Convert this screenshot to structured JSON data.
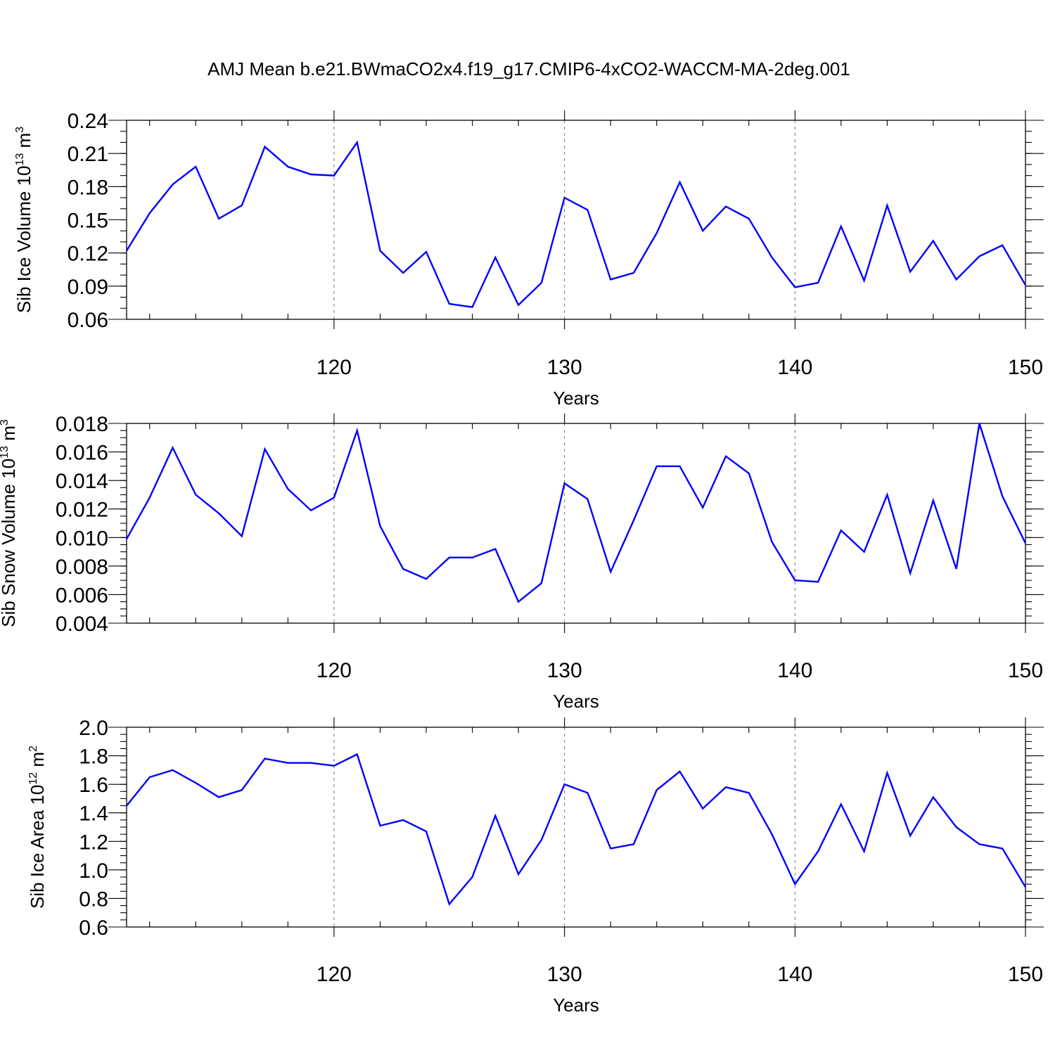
{
  "title": "AMJ Mean b.e21.BWmaCO2x4.f19_g17.CMIP6-4xCO2-WACCM-MA-2deg.001",
  "colors": {
    "series": "#0000ff",
    "axis": "#000000",
    "background": "#ffffff"
  },
  "chart_data": [
    {
      "type": "line",
      "xlabel": "Years",
      "ylabel": {
        "text": "Sib Ice Volume 10",
        "sup": "13",
        "unit": " m",
        "unit_sup": "3"
      },
      "xlim": [
        111,
        150
      ],
      "ylim": [
        0.06,
        0.24
      ],
      "x_ticks": [
        120,
        130,
        140,
        150
      ],
      "x_tick_labels": [
        "120",
        "130",
        "140",
        "150"
      ],
      "x_grid": "dashed at major ticks",
      "y_ticks": [
        0.06,
        0.09,
        0.12,
        0.15,
        0.18,
        0.21,
        0.24
      ],
      "y_tick_labels": [
        "0.06",
        "0.09",
        "0.12",
        "0.15",
        "0.18",
        "0.21",
        "0.24"
      ],
      "y_minor_step": 0.01,
      "x_minor_step": 2,
      "x": [
        111,
        112,
        113,
        114,
        115,
        116,
        117,
        118,
        119,
        120,
        121,
        122,
        123,
        124,
        125,
        126,
        127,
        128,
        129,
        130,
        131,
        132,
        133,
        134,
        135,
        136,
        137,
        138,
        139,
        140,
        141,
        142,
        143,
        144,
        145,
        146,
        147,
        148,
        149,
        150
      ],
      "values": [
        0.122,
        0.156,
        0.182,
        0.198,
        0.151,
        0.163,
        0.216,
        0.198,
        0.191,
        0.19,
        0.22,
        0.122,
        0.102,
        0.121,
        0.074,
        0.071,
        0.116,
        0.073,
        0.093,
        0.17,
        0.159,
        0.096,
        0.102,
        0.138,
        0.184,
        0.14,
        0.162,
        0.151,
        0.116,
        0.089,
        0.093,
        0.144,
        0.095,
        0.163,
        0.103,
        0.131,
        0.096,
        0.117,
        0.127,
        0.091
      ]
    },
    {
      "type": "line",
      "xlabel": "Years",
      "ylabel": {
        "text": "Sib Snow Volume 10",
        "sup": "13",
        "unit": " m",
        "unit_sup": "3"
      },
      "xlim": [
        111,
        150
      ],
      "ylim": [
        0.004,
        0.018
      ],
      "x_ticks": [
        120,
        130,
        140,
        150
      ],
      "x_tick_labels": [
        "120",
        "130",
        "140",
        "150"
      ],
      "x_grid": "dashed at major ticks",
      "y_ticks": [
        0.004,
        0.006,
        0.008,
        0.01,
        0.012,
        0.014,
        0.016,
        0.018
      ],
      "y_tick_labels": [
        "0.004",
        "0.006",
        "0.008",
        "0.010",
        "0.012",
        "0.014",
        "0.016",
        "0.018"
      ],
      "y_minor_step": 0.0005,
      "x_minor_step": 2,
      "x": [
        111,
        112,
        113,
        114,
        115,
        116,
        117,
        118,
        119,
        120,
        121,
        122,
        123,
        124,
        125,
        126,
        127,
        128,
        129,
        130,
        131,
        132,
        133,
        134,
        135,
        136,
        137,
        138,
        139,
        140,
        141,
        142,
        143,
        144,
        145,
        146,
        147,
        148,
        149,
        150
      ],
      "values": [
        0.0099,
        0.0128,
        0.0163,
        0.013,
        0.0117,
        0.0101,
        0.0162,
        0.0134,
        0.0119,
        0.0128,
        0.0175,
        0.0108,
        0.0078,
        0.0071,
        0.0086,
        0.0086,
        0.0092,
        0.0055,
        0.0068,
        0.0138,
        0.0127,
        0.0076,
        0.0112,
        0.015,
        0.015,
        0.0121,
        0.0157,
        0.0145,
        0.0097,
        0.007,
        0.0069,
        0.0105,
        0.009,
        0.013,
        0.0075,
        0.0126,
        0.0078,
        0.018,
        0.0129,
        0.0096
      ]
    },
    {
      "type": "line",
      "xlabel": "Years",
      "ylabel": {
        "text": "Sib Ice Area 10",
        "sup": "12",
        "unit": " m",
        "unit_sup": "2"
      },
      "xlim": [
        111,
        150
      ],
      "ylim": [
        0.6,
        2.0
      ],
      "x_ticks": [
        120,
        130,
        140,
        150
      ],
      "x_tick_labels": [
        "120",
        "130",
        "140",
        "150"
      ],
      "x_grid": "dashed at major ticks",
      "y_ticks": [
        0.6,
        0.8,
        1.0,
        1.2,
        1.4,
        1.6,
        1.8,
        2.0
      ],
      "y_tick_labels": [
        "0.6",
        "0.8",
        "1.0",
        "1.2",
        "1.4",
        "1.6",
        "1.8",
        "2.0"
      ],
      "y_minor_step": 0.05,
      "x_minor_step": 2,
      "x": [
        111,
        112,
        113,
        114,
        115,
        116,
        117,
        118,
        119,
        120,
        121,
        122,
        123,
        124,
        125,
        126,
        127,
        128,
        129,
        130,
        131,
        132,
        133,
        134,
        135,
        136,
        137,
        138,
        139,
        140,
        141,
        142,
        143,
        144,
        145,
        146,
        147,
        148,
        149,
        150
      ],
      "values": [
        1.45,
        1.65,
        1.7,
        1.61,
        1.51,
        1.56,
        1.78,
        1.75,
        1.75,
        1.73,
        1.81,
        1.31,
        1.35,
        1.27,
        0.76,
        0.95,
        1.38,
        0.97,
        1.21,
        1.6,
        1.54,
        1.15,
        1.18,
        1.56,
        1.69,
        1.43,
        1.58,
        1.54,
        1.25,
        0.9,
        1.13,
        1.46,
        1.13,
        1.68,
        1.24,
        1.51,
        1.3,
        1.18,
        1.15,
        0.88
      ]
    }
  ]
}
